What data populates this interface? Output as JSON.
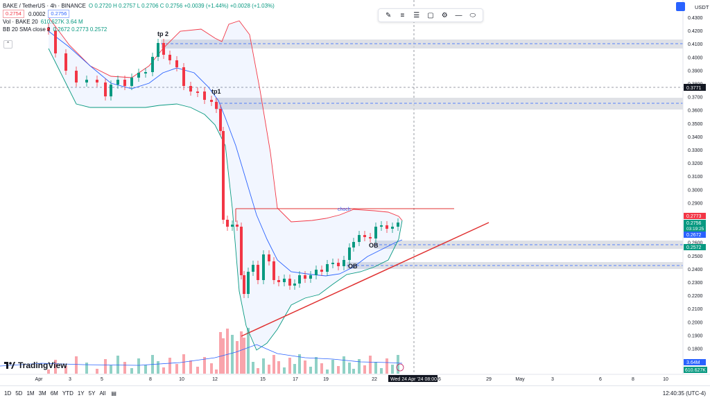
{
  "header": {
    "symbol": "BAKE / TetherUS · 4h · BINANCE",
    "ohlc": "O 0.2720  H 0.2757  L 0.2706  C 0.2756  +0.0039 (+1.44%)  +0.0028 (+1.03%)",
    "bid": "0.2754",
    "spread": "0.0002",
    "ask": "0.2756",
    "vol_legend": "Vol · BAKE 20",
    "vol_values": "610.627K  3.64 M",
    "bb_legend": "BB 20 SMA close 2",
    "bb_values": "0.2672  0.2773  0.2572",
    "currency": "USDT"
  },
  "colors": {
    "up": "#089981",
    "down": "#f23645",
    "basis": "#2962ff",
    "upper": "#f23645",
    "lower": "#089981",
    "trend": "#e03131",
    "zone": "#d1d4dc"
  },
  "toolbar": {
    "icons": [
      "pencil-icon",
      "text-lines-icon",
      "align-icon",
      "rectangle-icon",
      "settings-icon",
      "line-icon",
      "shape-icon"
    ]
  },
  "price_axis": {
    "ticks": [
      "0.4300",
      "0.4200",
      "0.4100",
      "0.4000",
      "0.3900",
      "0.3800",
      "0.3700",
      "0.3600",
      "0.3500",
      "0.3400",
      "0.3300",
      "0.3200",
      "0.3100",
      "0.3000",
      "0.2900",
      "0.2800",
      "0.2700",
      "0.2600",
      "0.2500",
      "0.2400",
      "0.2300",
      "0.2200",
      "0.2100",
      "0.2000",
      "0.1900",
      "0.1800"
    ],
    "crosshair_price": "0.3771",
    "upper_label": "0.2773",
    "last_price": "0.2756",
    "countdown": "03:19:25",
    "basis_label": "0.2672",
    "lower_label": "0.2572",
    "vol_label": "3.64M",
    "vol_label2": "610.627K"
  },
  "time_axis": {
    "ticks": [
      "Apr",
      "3",
      "5",
      "8",
      "10",
      "12",
      "15",
      "17",
      "19",
      "22",
      "26",
      "29",
      "May",
      "3",
      "6",
      "8",
      "10"
    ],
    "crosshair_time": "Wed 24 Apr '24  08:00"
  },
  "annotations": {
    "tp2": "tp 2",
    "tp1": "tp1",
    "choch": "choch",
    "ob1": "OB",
    "ob2": "OB"
  },
  "bottom": {
    "timeframes": [
      "1D",
      "5D",
      "1M",
      "3M",
      "6M",
      "YTD",
      "1Y",
      "5Y",
      "All"
    ],
    "clock": "12:40:35 (UTC-4)"
  },
  "logo": "TradingView"
}
